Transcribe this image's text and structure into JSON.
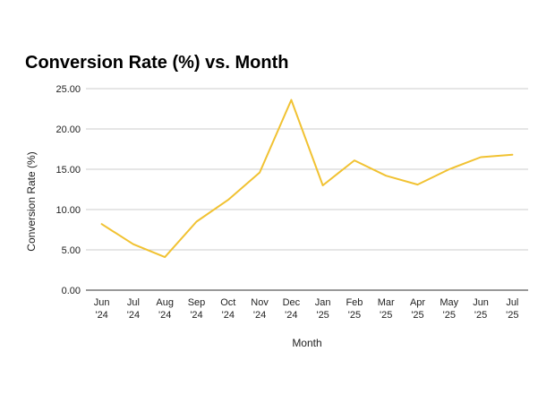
{
  "chart_data": {
    "type": "line",
    "title": "Conversion Rate (%) vs. Month",
    "xlabel": "Month",
    "ylabel": "Conversion Rate (%)",
    "categories": [
      [
        "Jun",
        "'24"
      ],
      [
        "Jul",
        "'24"
      ],
      [
        "Aug",
        "'24"
      ],
      [
        "Sep",
        "'24"
      ],
      [
        "Oct",
        "'24"
      ],
      [
        "Nov",
        "'24"
      ],
      [
        "Dec",
        "'24"
      ],
      [
        "Jan",
        "'25"
      ],
      [
        "Feb",
        "'25"
      ],
      [
        "Mar",
        "'25"
      ],
      [
        "Apr",
        "'25"
      ],
      [
        "May",
        "'25"
      ],
      [
        "Jun",
        "'25"
      ],
      [
        "Jul",
        "'25"
      ]
    ],
    "series": [
      {
        "values": [
          8.2,
          5.7,
          4.1,
          8.5,
          11.2,
          14.6,
          23.6,
          13.0,
          16.1,
          14.2,
          13.1,
          15.0,
          16.5,
          16.8
        ],
        "color": "#f1c232"
      }
    ],
    "ylim": [
      0,
      25
    ],
    "yticks": [
      "0.00",
      "5.00",
      "10.00",
      "15.00",
      "20.00",
      "25.00"
    ],
    "ytick_values": [
      0,
      5,
      10,
      15,
      20,
      25
    ],
    "grid": true,
    "legend": "none"
  }
}
